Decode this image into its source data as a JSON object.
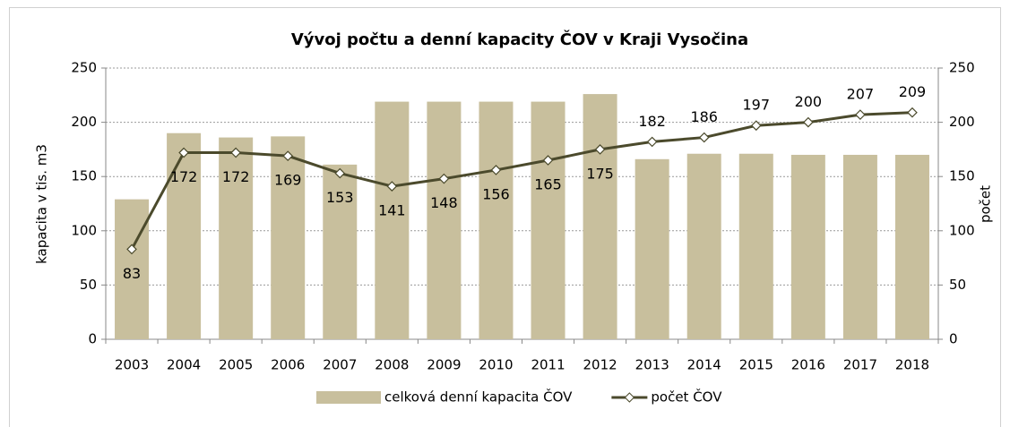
{
  "chart_data": {
    "type": "combo",
    "title": "Vývoj počtu a denní kapacity ČOV  v Kraji Vysočina",
    "categories": [
      "2003",
      "2004",
      "2005",
      "2006",
      "2007",
      "2008",
      "2009",
      "2010",
      "2011",
      "2012",
      "2013",
      "2014",
      "2015",
      "2016",
      "2017",
      "2018"
    ],
    "series": [
      {
        "name": "celková denní kapacita ČOV",
        "type": "bar",
        "color": "#c8bf9d",
        "axis": "y",
        "values": [
          129,
          190,
          186,
          187,
          161,
          219,
          219,
          219,
          219,
          226,
          166,
          171,
          171,
          170,
          170,
          170
        ]
      },
      {
        "name": "počet ČOV",
        "type": "line",
        "color": "#4b4a2c",
        "axis": "y2",
        "values": [
          83,
          172,
          172,
          169,
          153,
          141,
          148,
          156,
          165,
          175,
          182,
          186,
          197,
          200,
          207,
          209
        ]
      }
    ],
    "ylabel": "kapacita v tis. m3",
    "y2label": "počet",
    "ylim": [
      0,
      250
    ],
    "yticks": [
      0,
      50,
      100,
      150,
      200,
      250
    ],
    "y2lim": [
      0,
      250
    ],
    "y2ticks": [
      0,
      50,
      100,
      150,
      200,
      250
    ],
    "grid": true,
    "legend": "bottom"
  }
}
